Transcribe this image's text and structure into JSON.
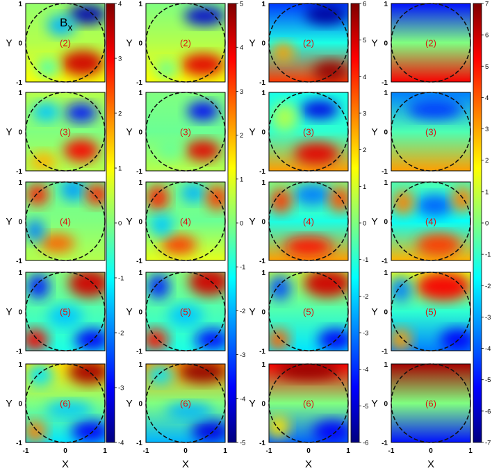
{
  "figure_label": "B",
  "figure_label_sub": "x",
  "chart_data": {
    "type": "heatmap",
    "layout": "5 rows × 4 columns of colormap panels",
    "xlabel": "X",
    "ylabel": "Y",
    "xlim": [
      -1,
      1
    ],
    "ylim": [
      -1,
      1
    ],
    "x_ticks": [
      "-1",
      "0",
      "1"
    ],
    "y_ticks": [
      "-1",
      "0",
      "1"
    ],
    "colormap": "jet",
    "overlay": "dashed unit circle",
    "colors": {
      "panel_label": "#dd1111",
      "circle": "#111111"
    },
    "row_labels": [
      "(2)",
      "(3)",
      "(4)",
      "(5)",
      "(6)"
    ],
    "columns": [
      {
        "clim": [
          -4,
          4
        ],
        "colorbar_ticks": [
          "4",
          "3",
          "2",
          "1",
          "0",
          "-1",
          "-2",
          "-3",
          "-4"
        ]
      },
      {
        "clim": [
          -5,
          5
        ],
        "colorbar_ticks": [
          "5",
          "4",
          "3",
          "2",
          "1",
          "0",
          "-1",
          "-2",
          "-3",
          "-4",
          "-5"
        ]
      },
      {
        "clim": [
          -6,
          6
        ],
        "colorbar_ticks": [
          "6",
          "5",
          "4",
          "3",
          "2",
          "1",
          "0",
          "-1",
          "-2",
          "-3",
          "-4",
          "-5",
          "-6"
        ]
      },
      {
        "clim": [
          -7,
          7
        ],
        "colorbar_ticks": [
          "7",
          "6",
          "5",
          "4",
          "3",
          "2",
          "1",
          "0",
          "-1",
          "-2",
          "-3",
          "-4",
          "-5",
          "-6",
          "-7"
        ]
      }
    ]
  }
}
